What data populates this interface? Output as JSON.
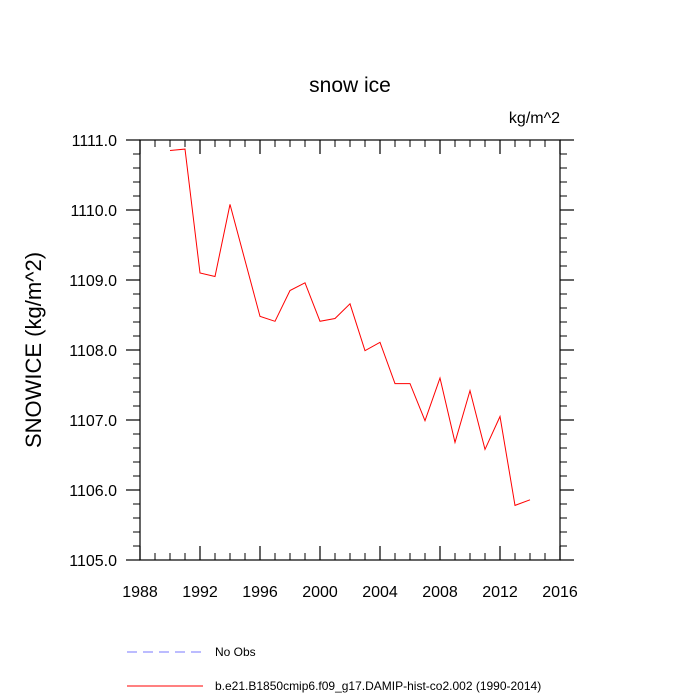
{
  "chart_data": {
    "type": "line",
    "title": "snow ice",
    "units_label": "kg/m^2",
    "ylabel": "SNOWICE  (kg/m^2)",
    "xlabel": "",
    "xlim": [
      1988,
      2016
    ],
    "ylim": [
      1105.0,
      1111.0
    ],
    "x_ticks": [
      1988,
      1992,
      1996,
      2000,
      2004,
      2008,
      2012,
      2016
    ],
    "x_tick_labels": [
      "1988",
      "1992",
      "1996",
      "2000",
      "2004",
      "2008",
      "2012",
      "2016"
    ],
    "y_ticks": [
      1105.0,
      1106.0,
      1107.0,
      1108.0,
      1109.0,
      1110.0,
      1111.0
    ],
    "y_tick_labels": [
      "1105.0",
      "1106.0",
      "1107.0",
      "1108.0",
      "1109.0",
      "1110.0",
      "1111.0"
    ],
    "grid": false,
    "legend_position": "bottom",
    "series": [
      {
        "name": "b.e21.B1850cmip6.f09_g17.DAMIP-hist-co2.002 (1990-2014)",
        "color": "#ff0000",
        "dash": "solid",
        "x": [
          1990,
          1991,
          1992,
          1993,
          1994,
          1995,
          1996,
          1997,
          1998,
          1999,
          2000,
          2001,
          2002,
          2003,
          2004,
          2005,
          2006,
          2007,
          2008,
          2009,
          2010,
          2011,
          2012,
          2013,
          2014
        ],
        "y": [
          1110.85,
          1110.87,
          1109.1,
          1109.05,
          1110.08,
          1109.28,
          1108.48,
          1108.41,
          1108.85,
          1108.96,
          1108.41,
          1108.45,
          1108.66,
          1107.99,
          1108.11,
          1107.52,
          1107.52,
          1106.99,
          1107.6,
          1106.68,
          1107.42,
          1106.58,
          1107.05,
          1105.78,
          1105.86
        ]
      }
    ],
    "legend": [
      {
        "label": "No Obs",
        "color": "#7a7aff",
        "dash": "dashed"
      },
      {
        "label": "b.e21.B1850cmip6.f09_g17.DAMIP-hist-co2.002 (1990-2014)",
        "color": "#ff0000",
        "dash": "solid"
      }
    ]
  }
}
